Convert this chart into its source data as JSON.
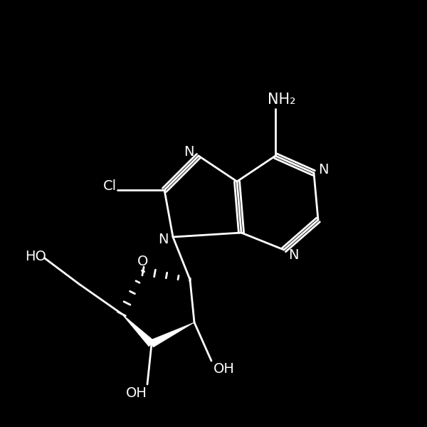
{
  "bg_color": "#000000",
  "line_color": "#ffffff",
  "line_width": 2.0,
  "font_size": 13,
  "figsize": [
    6.0,
    6.0
  ],
  "dpi": 100,
  "xlim": [
    0,
    10
  ],
  "ylim": [
    0,
    10
  ]
}
